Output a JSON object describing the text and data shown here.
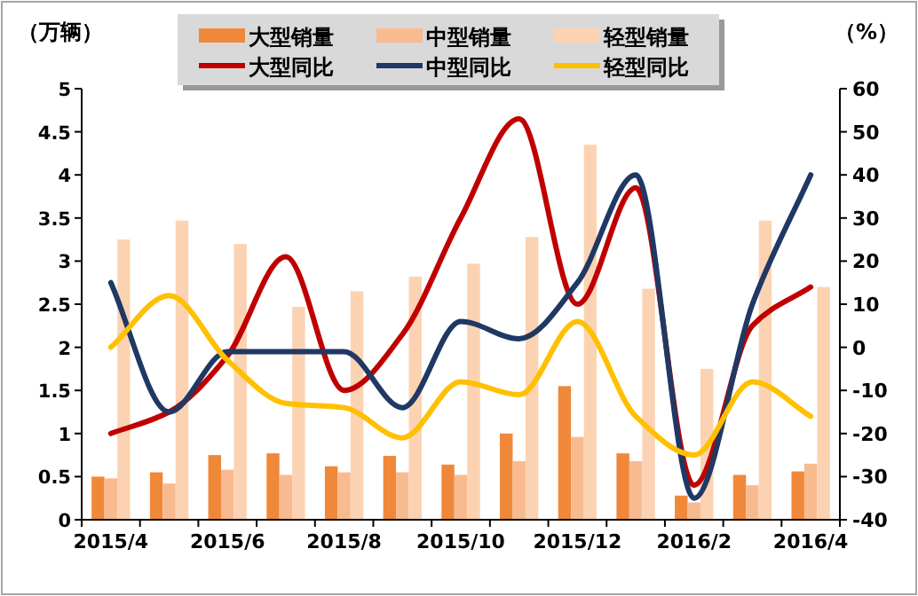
{
  "chart_data": {
    "type": "bar",
    "ylabel": "（万辆）",
    "y2label": "（%）",
    "categories": [
      "2015/4",
      null,
      "2015/6",
      null,
      "2015/8",
      null,
      "2015/10",
      null,
      "2015/12",
      null,
      "2016/2",
      null,
      "2016/4"
    ],
    "ylim": [
      0,
      5
    ],
    "yticks": [
      0,
      0.5,
      1,
      1.5,
      2,
      2.5,
      3,
      3.5,
      4,
      4.5,
      5
    ],
    "y2lim": [
      -40,
      60
    ],
    "y2ticks": [
      -40,
      -30,
      -20,
      -10,
      0,
      10,
      20,
      30,
      40,
      50,
      60
    ],
    "legend": "top",
    "grid": false,
    "series": [
      {
        "name": "大型销量",
        "color": "#f0883a",
        "values": [
          0.5,
          0.55,
          0.75,
          0.77,
          0.62,
          0.74,
          0.64,
          1.0,
          1.55,
          0.77,
          0.28,
          0.52,
          0.56
        ]
      },
      {
        "name": "中型销量",
        "color": "#f8bb90",
        "values": [
          0.48,
          0.42,
          0.58,
          0.52,
          0.55,
          0.55,
          0.52,
          0.68,
          0.96,
          0.68,
          0.2,
          0.4,
          0.65
        ]
      },
      {
        "name": "轻型销量",
        "color": "#fcd3b2",
        "values": [
          3.25,
          3.47,
          3.2,
          2.47,
          2.65,
          2.82,
          2.97,
          3.28,
          4.35,
          2.68,
          1.75,
          3.47,
          2.7
        ]
      },
      {
        "name": "大型同比",
        "type": "line",
        "axis": "y2",
        "color": "#c00000",
        "values": [
          -20,
          -15,
          -2,
          21,
          -10,
          3,
          30,
          53,
          10,
          37,
          -32,
          5,
          14
        ]
      },
      {
        "name": "中型同比",
        "type": "line",
        "axis": "y2",
        "color": "#1f3864",
        "values": [
          15,
          -15,
          -1,
          -1,
          -1,
          -14,
          6,
          2,
          15,
          40,
          -35,
          10,
          40
        ]
      },
      {
        "name": "轻型同比",
        "type": "line",
        "axis": "y2",
        "color": "#ffc000",
        "values": [
          0,
          12,
          -3,
          -13,
          -14,
          -21,
          -8,
          -11,
          6,
          -16,
          -25,
          -8,
          -16
        ]
      }
    ]
  }
}
